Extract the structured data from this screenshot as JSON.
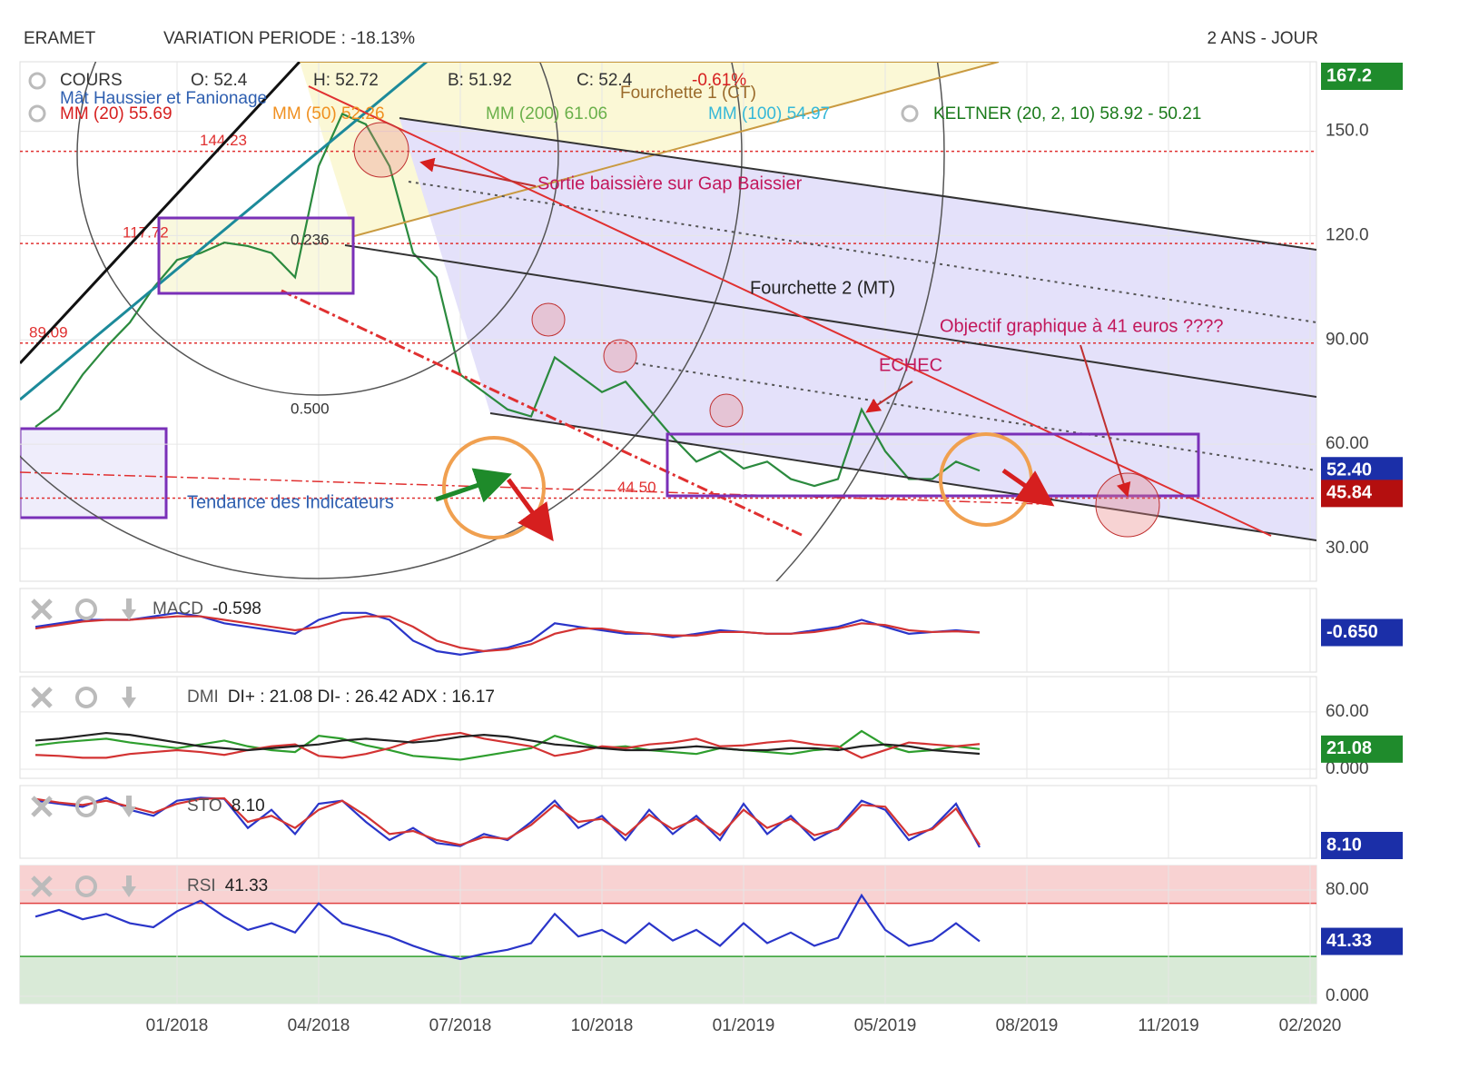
{
  "chart_data": [
    {
      "type": "line",
      "title": "ERAMET",
      "subtitle": "VARIATION PERIODE : -18.13%",
      "period": "2 ANS - JOUR",
      "legend": [
        "COURS",
        "O: 52.4",
        "H: 52.72",
        "B: 51.92",
        "C: 52.4",
        "-0.61%",
        "Mât Haussier et Fanionage",
        "Fourchette 1 (CT)",
        "MM (20) 55.69",
        "MM (50) 52.26",
        "MM (200) 61.06",
        "MM (100) 54.97",
        "KELTNER (20, 2, 10) 58.92 - 50.21"
      ],
      "annotations": [
        "0.236",
        "0.500",
        "Sortie baissière sur Gap Baissier",
        "Fourchette 2 (MT)",
        "Objectif graphique à 41 euros ????",
        "ECHEC",
        "Tendance des Indicateurs"
      ],
      "categories": [
        null,
        null,
        null,
        null,
        null,
        null,
        "01/2018",
        null,
        null,
        null,
        null,
        null,
        "04/2018",
        null,
        null,
        null,
        null,
        null,
        "07/2018",
        null,
        null,
        null,
        null,
        null,
        "10/2018",
        null,
        null,
        null,
        null,
        null,
        "01/2019",
        null,
        null,
        null,
        null,
        null,
        "05/2019",
        null,
        null,
        null,
        null,
        null,
        "08/2019",
        null,
        null,
        null,
        null,
        null,
        "11/2019",
        null,
        null,
        null,
        null,
        null,
        "02/2020"
      ],
      "series": [
        {
          "color": "#2b8a3e",
          "values": [
            65,
            70,
            80,
            88,
            95,
            105,
            113,
            115,
            118,
            117,
            115,
            108,
            140,
            155,
            152,
            140,
            115,
            108,
            80,
            75,
            70,
            68,
            85,
            80,
            75,
            78,
            70,
            62,
            55,
            58,
            53,
            55,
            50,
            48,
            50,
            70,
            58,
            50,
            50,
            55,
            52.4,
            null,
            null,
            null,
            null,
            null,
            null,
            null,
            null,
            null,
            null,
            null,
            null,
            null,
            null
          ]
        }
      ],
      "ylim": [
        20.6,
        170
      ],
      "yticks": [
        {
          "value": 150,
          "label": "150.0"
        },
        {
          "value": 120,
          "label": "120.0"
        },
        {
          "value": 90,
          "label": "90.00"
        },
        {
          "value": 60,
          "label": "60.00"
        },
        {
          "value": 30,
          "label": "30.00"
        }
      ],
      "levels": [
        144.23,
        117.72,
        89.09,
        {
          "value": 44.5,
          "label": "44.50"
        }
      ],
      "badges": [
        {
          "value": 167.2,
          "color": "#1f8b2c"
        },
        {
          "value": 52.4,
          "label": "52.40",
          "color": "#1b2fa8"
        },
        {
          "value": 45.84,
          "color": "#b40f0f"
        }
      ],
      "grid": true
    },
    {
      "type": "line",
      "title": "MACD",
      "readout": "-0.598",
      "series": [
        {
          "color": "#2a35c9",
          "values": [
            1,
            2,
            3,
            3,
            3,
            4,
            5,
            4,
            2,
            1,
            0,
            -1,
            3,
            5,
            5,
            3,
            -3,
            -6,
            -7,
            -6,
            -5,
            -3,
            2,
            1,
            0,
            -1,
            -1,
            -2,
            -1,
            0,
            -0.5,
            -1,
            -1,
            0,
            1,
            3,
            1,
            -1,
            -0.5,
            0,
            -0.6
          ]
        },
        {
          "color": "#d33333",
          "values": [
            0.5,
            1.5,
            2.5,
            3,
            3,
            3.5,
            4,
            4,
            3,
            2,
            1,
            0,
            1,
            3,
            4,
            4,
            1,
            -3,
            -5,
            -6,
            -5.5,
            -4,
            -1,
            0.5,
            0.5,
            -0.5,
            -1,
            -1.5,
            -1.5,
            -0.5,
            -0.5,
            -1,
            -1,
            -0.5,
            0.5,
            2,
            1.5,
            0,
            -0.5,
            -0.3,
            -0.65
          ]
        }
      ],
      "ylim": [
        -12,
        12
      ],
      "badges": [
        {
          "value": -0.65,
          "label": "-0.650",
          "color": "#1b2fa8"
        }
      ]
    },
    {
      "type": "line",
      "title": "DMI",
      "readout": "DI+ : 21.08 DI- : 26.42 ADX : 16.17",
      "series": [
        {
          "color": "#2e9e2e",
          "values": [
            25,
            28,
            30,
            32,
            28,
            25,
            22,
            26,
            30,
            24,
            20,
            18,
            35,
            32,
            25,
            20,
            14,
            12,
            10,
            14,
            18,
            22,
            35,
            28,
            22,
            24,
            20,
            18,
            16,
            22,
            20,
            18,
            16,
            20,
            22,
            40,
            25,
            18,
            20,
            24,
            21.08
          ]
        },
        {
          "color": "#d33333",
          "values": [
            15,
            14,
            12,
            12,
            16,
            18,
            20,
            18,
            15,
            20,
            24,
            26,
            14,
            12,
            16,
            22,
            30,
            35,
            38,
            32,
            28,
            24,
            14,
            18,
            24,
            22,
            26,
            28,
            32,
            24,
            25,
            28,
            30,
            26,
            24,
            12,
            20,
            28,
            26,
            24,
            26.42
          ]
        },
        {
          "color": "#222222",
          "values": [
            30,
            32,
            35,
            38,
            36,
            32,
            28,
            24,
            22,
            20,
            22,
            24,
            26,
            30,
            32,
            30,
            28,
            30,
            34,
            36,
            34,
            30,
            26,
            24,
            22,
            20,
            20,
            22,
            24,
            22,
            20,
            20,
            22,
            22,
            20,
            24,
            26,
            24,
            20,
            18,
            16.17
          ]
        }
      ],
      "ylim": [
        -9.5,
        97
      ],
      "yticks": [
        {
          "value": 60,
          "label": "60.00"
        },
        {
          "value": 0,
          "label": "0.000"
        }
      ],
      "badges": [
        {
          "value": 21.08,
          "color": "#1f8b2c"
        }
      ]
    },
    {
      "type": "line",
      "title": "STO",
      "readout": "8.10",
      "series": [
        {
          "color": "#2a35c9",
          "values": [
            85,
            80,
            75,
            90,
            70,
            60,
            85,
            90,
            88,
            40,
            70,
            30,
            80,
            85,
            50,
            20,
            40,
            15,
            10,
            30,
            20,
            50,
            85,
            40,
            60,
            20,
            70,
            30,
            60,
            20,
            80,
            30,
            60,
            20,
            40,
            85,
            70,
            20,
            40,
            80,
            8.1
          ]
        },
        {
          "color": "#d33333",
          "values": [
            88,
            82,
            78,
            85,
            75,
            65,
            80,
            88,
            89,
            50,
            60,
            40,
            70,
            85,
            60,
            30,
            35,
            20,
            12,
            25,
            22,
            45,
            78,
            50,
            55,
            28,
            62,
            38,
            55,
            28,
            70,
            40,
            55,
            28,
            38,
            78,
            75,
            28,
            38,
            72,
            12
          ]
        }
      ],
      "ylim": [
        -10,
        110
      ],
      "badges": [
        {
          "value": 8.1,
          "label": "8.10",
          "color": "#1b2fa8"
        }
      ]
    },
    {
      "type": "line",
      "title": "RSI",
      "readout": "41.33",
      "series": [
        {
          "color": "#2a35c9",
          "values": [
            60,
            65,
            58,
            62,
            55,
            52,
            64,
            72,
            60,
            50,
            55,
            48,
            70,
            55,
            50,
            45,
            38,
            32,
            28,
            32,
            35,
            40,
            62,
            45,
            50,
            40,
            55,
            42,
            50,
            38,
            55,
            40,
            48,
            38,
            44,
            76,
            50,
            38,
            42,
            55,
            41.33
          ]
        }
      ],
      "ylim": [
        -5.5,
        98.5
      ],
      "yticks": [
        {
          "value": 80,
          "label": "80.00"
        },
        {
          "value": 0,
          "label": "0.000"
        }
      ],
      "overbought": 70,
      "oversold": 30,
      "badges": [
        {
          "value": 41.33,
          "color": "#1b2fa8"
        }
      ]
    }
  ]
}
